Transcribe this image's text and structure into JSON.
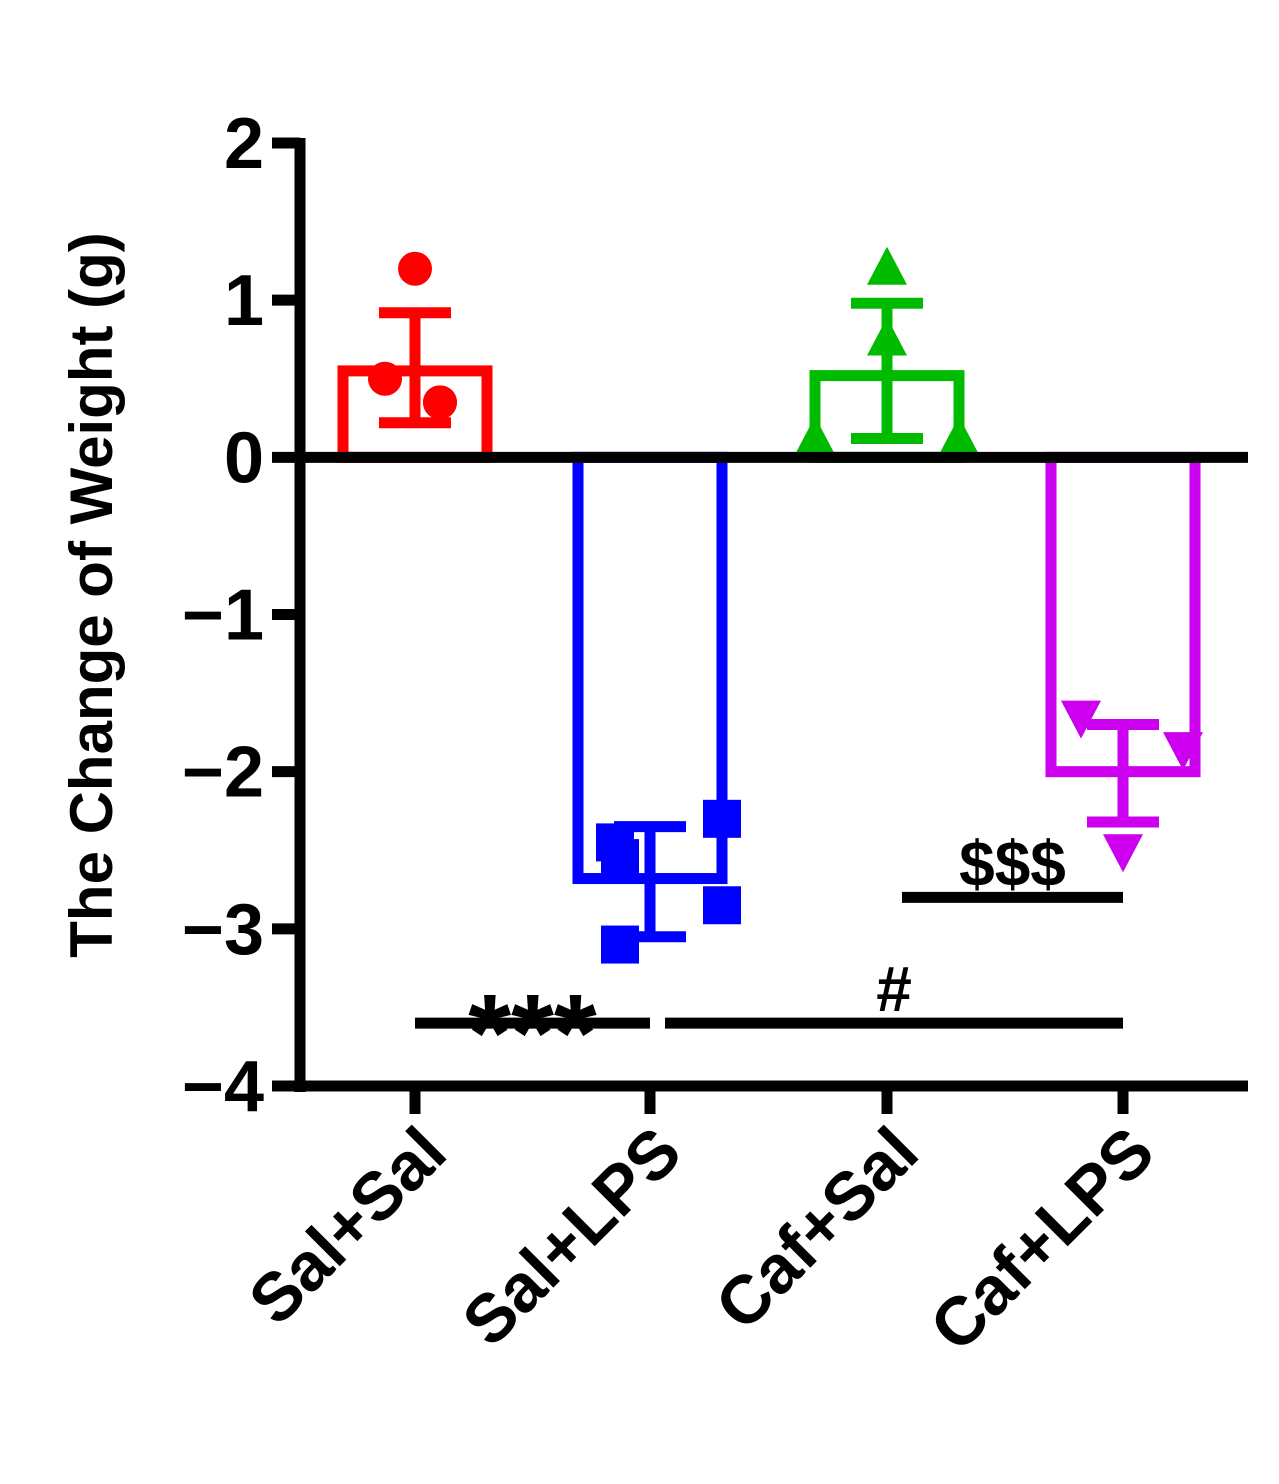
{
  "chart_data": {
    "type": "bar",
    "ylabel": "The Change of Weight (g)",
    "ylim": [
      -4,
      2
    ],
    "yticks": [
      {
        "value": 2,
        "label": "2"
      },
      {
        "value": 1,
        "label": "1"
      },
      {
        "value": 0,
        "label": "0"
      },
      {
        "value": -1,
        "label": "−1"
      },
      {
        "value": -2,
        "label": "−2"
      },
      {
        "value": -3,
        "label": "−3"
      },
      {
        "value": -4,
        "label": "−4"
      }
    ],
    "categories": [
      "Sal+Sal",
      "Sal+LPS",
      "Caf+Sal",
      "Caf+LPS"
    ],
    "groups": [
      {
        "name": "Sal+Sal",
        "mean": 0.55,
        "err_low": 0.22,
        "err_high": 0.92,
        "color": "#ff0000",
        "marker": "circle",
        "points": [
          1.2,
          0.5,
          0.35,
          0.35
        ]
      },
      {
        "name": "Sal+LPS",
        "mean": -2.68,
        "err_low": -3.05,
        "err_high": -2.35,
        "color": "#0000ff",
        "marker": "square",
        "points": [
          -2.3,
          -2.45,
          -2.55,
          -2.85,
          -3.1
        ]
      },
      {
        "name": "Caf+Sal",
        "mean": 0.52,
        "err_low": 0.12,
        "err_high": 0.98,
        "color": "#00bb00",
        "marker": "triangle-up",
        "points": [
          1.2,
          0.75,
          0.12,
          0.12
        ]
      },
      {
        "name": "Caf+LPS",
        "mean": -2.0,
        "err_low": -2.32,
        "err_high": -1.7,
        "color": "#cc00ee",
        "marker": "triangle-down",
        "points": [
          -1.65,
          -1.85,
          -2.5
        ]
      }
    ],
    "annotations": [
      {
        "text": "***",
        "from": 0,
        "to": 1,
        "y": -3.6
      },
      {
        "text": "#",
        "from": 1,
        "to": 3,
        "y": -3.6
      },
      {
        "text": "$$$",
        "from": 2,
        "to": 3,
        "y": -2.8
      }
    ]
  }
}
